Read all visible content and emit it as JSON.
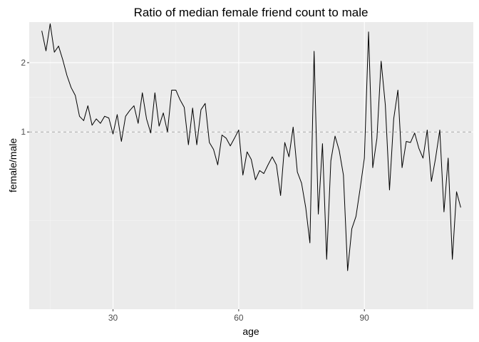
{
  "chart_data": {
    "type": "line",
    "title": "Ratio of median female friend count to male",
    "xlabel": "age",
    "ylabel": "female/male",
    "xlim": [
      10,
      116
    ],
    "ylim": [
      0.17,
      3.0
    ],
    "log_y": true,
    "grid": true,
    "x_ticks": [
      30,
      60,
      90
    ],
    "y_ticks": [
      1,
      2
    ],
    "x_tick_labels": [
      "30",
      "60",
      "90"
    ],
    "y_tick_labels": [
      "1",
      "2"
    ],
    "reference_line": {
      "y": 1,
      "style": "dashed",
      "color": "#a6a6a6"
    },
    "series": [
      {
        "color": "#000000",
        "x": [
          13,
          14,
          15,
          16,
          17,
          18,
          19,
          20,
          21,
          22,
          23,
          24,
          25,
          26,
          27,
          28,
          29,
          30,
          31,
          32,
          33,
          34,
          35,
          36,
          37,
          38,
          39,
          40,
          41,
          42,
          43,
          44,
          45,
          46,
          47,
          48,
          49,
          50,
          51,
          52,
          53,
          54,
          55,
          56,
          57,
          58,
          59,
          60,
          61,
          62,
          63,
          64,
          65,
          66,
          67,
          68,
          69,
          70,
          71,
          72,
          73,
          74,
          75,
          76,
          77,
          78,
          79,
          80,
          81,
          82,
          83,
          84,
          85,
          86,
          87,
          88,
          89,
          90,
          91,
          92,
          93,
          94,
          95,
          96,
          97,
          98,
          99,
          100,
          101,
          102,
          103,
          104,
          105,
          106,
          107,
          108,
          109,
          110,
          111,
          112,
          113
        ],
        "y": [
          2.75,
          2.25,
          2.95,
          2.22,
          2.36,
          2.06,
          1.76,
          1.56,
          1.44,
          1.17,
          1.12,
          1.3,
          1.07,
          1.14,
          1.09,
          1.17,
          1.15,
          0.98,
          1.19,
          0.91,
          1.17,
          1.24,
          1.3,
          1.09,
          1.48,
          1.14,
          0.99,
          1.48,
          1.06,
          1.21,
          1.0,
          1.52,
          1.52,
          1.38,
          1.28,
          0.88,
          1.27,
          0.88,
          1.25,
          1.33,
          0.9,
          0.84,
          0.72,
          0.97,
          0.94,
          0.87,
          0.94,
          1.02,
          0.65,
          0.82,
          0.76,
          0.62,
          0.68,
          0.66,
          0.72,
          0.78,
          0.72,
          0.53,
          0.9,
          0.78,
          1.05,
          0.67,
          0.6,
          0.47,
          0.33,
          2.24,
          0.44,
          0.89,
          0.28,
          0.75,
          0.96,
          0.83,
          0.65,
          0.25,
          0.38,
          0.43,
          0.57,
          0.77,
          2.72,
          0.7,
          0.94,
          2.03,
          1.31,
          0.56,
          1.14,
          1.52,
          0.7,
          0.91,
          0.9,
          0.99,
          0.85,
          0.77,
          1.02,
          0.61,
          0.77,
          1.02,
          0.45,
          0.77,
          0.28,
          0.55,
          0.47
        ]
      }
    ]
  }
}
